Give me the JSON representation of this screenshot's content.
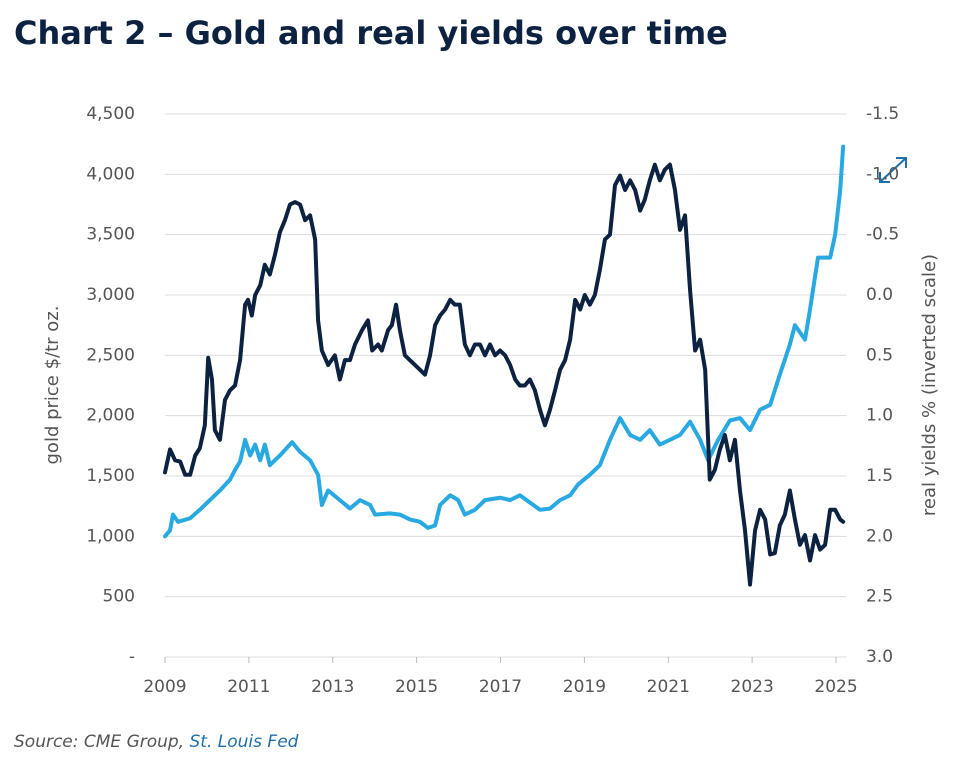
{
  "chart_data": {
    "type": "line",
    "title": "Chart 2 – Gold and real yields over time",
    "y_label": "gold price $/tr oz.",
    "y2_label": "real yields % (inverted scale)",
    "source": {
      "text": "Source: CME Group,",
      "link": "St. Louis Fed"
    },
    "xlim": [
      2009,
      2025.25
    ],
    "xticks": [
      2009,
      2011,
      2013,
      2015,
      2017,
      2019,
      2021,
      2023,
      2025
    ],
    "ylim": [
      0,
      4500
    ],
    "yticks": [
      {
        "value": 0,
        "label": "-"
      },
      500,
      {
        "value": 1000,
        "label": "1,000"
      },
      {
        "value": 1500,
        "label": "1,500"
      },
      {
        "value": 2000,
        "label": "2,000"
      },
      {
        "value": 2500,
        "label": "2,500"
      },
      {
        "value": 3000,
        "label": "3,000"
      },
      {
        "value": 3500,
        "label": "3,500"
      },
      {
        "value": 4000,
        "label": "4,000"
      },
      {
        "value": 4500,
        "label": "4,500"
      }
    ],
    "y2lim": [
      -1.5,
      3.0
    ],
    "y2_inverted": true,
    "y2ticks": [
      -1.5,
      {
        "value": -1,
        "label": "-1.0"
      },
      -0.5,
      {
        "value": 0,
        "label": "0.0"
      },
      0.5,
      {
        "value": 1,
        "label": "1.0"
      },
      1.5,
      {
        "value": 2,
        "label": "2.0"
      },
      2.5,
      {
        "value": 3,
        "label": "3.0"
      }
    ],
    "grid": true,
    "series": [
      {
        "color": "#29a9e1",
        "axis": "y",
        "x": [
          2009.0,
          2009.12,
          2009.19,
          2009.31,
          2009.6,
          2009.83,
          2010.07,
          2010.31,
          2010.55,
          2010.67,
          2010.79,
          2010.91,
          2011.03,
          2011.15,
          2011.27,
          2011.38,
          2011.5,
          2011.74,
          2012.03,
          2012.22,
          2012.46,
          2012.65,
          2012.74,
          2012.89,
          2013.17,
          2013.41,
          2013.65,
          2013.89,
          2014.01,
          2014.36,
          2014.6,
          2014.84,
          2015.08,
          2015.27,
          2015.44,
          2015.56,
          2015.8,
          2015.99,
          2016.15,
          2016.39,
          2016.63,
          2016.99,
          2017.23,
          2017.46,
          2017.7,
          2017.94,
          2018.18,
          2018.42,
          2018.66,
          2018.85,
          2019.13,
          2019.37,
          2019.61,
          2019.85,
          2020.09,
          2020.33,
          2020.56,
          2020.8,
          2021.04,
          2021.28,
          2021.52,
          2021.76,
          2021.95,
          2022.19,
          2022.47,
          2022.71,
          2022.95,
          2023.19,
          2023.43,
          2023.66,
          2023.9,
          2024.02,
          2024.26,
          2024.38,
          2024.57,
          2024.86,
          2024.98,
          2025.1,
          2025.17
        ],
        "values": [
          1000,
          1050,
          1180,
          1120,
          1150,
          1220,
          1300,
          1380,
          1470,
          1550,
          1620,
          1800,
          1670,
          1760,
          1630,
          1760,
          1590,
          1670,
          1780,
          1700,
          1630,
          1510,
          1260,
          1380,
          1300,
          1230,
          1300,
          1260,
          1180,
          1190,
          1180,
          1140,
          1120,
          1070,
          1090,
          1260,
          1340,
          1300,
          1180,
          1220,
          1300,
          1320,
          1300,
          1340,
          1280,
          1220,
          1230,
          1300,
          1340,
          1430,
          1510,
          1590,
          1800,
          1980,
          1840,
          1800,
          1880,
          1760,
          1800,
          1840,
          1950,
          1800,
          1630,
          1800,
          1960,
          1980,
          1880,
          2050,
          2090,
          2340,
          2590,
          2750,
          2630,
          2880,
          3310,
          3310,
          3500,
          3870,
          4230
        ]
      },
      {
        "color": "#0d2240",
        "axis": "y2",
        "x": [
          2009.0,
          2009.12,
          2009.24,
          2009.36,
          2009.48,
          2009.6,
          2009.72,
          2009.83,
          2009.95,
          2010.03,
          2010.12,
          2010.19,
          2010.31,
          2010.43,
          2010.55,
          2010.67,
          2010.79,
          2010.91,
          2010.98,
          2011.07,
          2011.15,
          2011.27,
          2011.38,
          2011.5,
          2011.62,
          2011.74,
          2011.86,
          2011.98,
          2012.1,
          2012.22,
          2012.34,
          2012.46,
          2012.58,
          2012.65,
          2012.74,
          2012.89,
          2013.05,
          2013.17,
          2013.29,
          2013.41,
          2013.53,
          2013.7,
          2013.84,
          2013.94,
          2014.08,
          2014.17,
          2014.32,
          2014.41,
          2014.51,
          2014.6,
          2014.72,
          2014.84,
          2014.96,
          2015.08,
          2015.2,
          2015.32,
          2015.44,
          2015.56,
          2015.68,
          2015.8,
          2015.91,
          2016.03,
          2016.15,
          2016.27,
          2016.39,
          2016.51,
          2016.63,
          2016.75,
          2016.87,
          2016.99,
          2017.11,
          2017.23,
          2017.35,
          2017.46,
          2017.58,
          2017.7,
          2017.82,
          2017.94,
          2018.06,
          2018.18,
          2018.3,
          2018.42,
          2018.54,
          2018.66,
          2018.78,
          2018.9,
          2019.01,
          2019.13,
          2019.25,
          2019.37,
          2019.49,
          2019.61,
          2019.73,
          2019.85,
          2019.97,
          2020.09,
          2020.21,
          2020.33,
          2020.44,
          2020.56,
          2020.68,
          2020.8,
          2020.92,
          2021.04,
          2021.16,
          2021.28,
          2021.4,
          2021.52,
          2021.64,
          2021.76,
          2021.88,
          2021.99,
          2022.11,
          2022.23,
          2022.35,
          2022.47,
          2022.59,
          2022.71,
          2022.83,
          2022.95,
          2023.07,
          2023.19,
          2023.31,
          2023.43,
          2023.54,
          2023.66,
          2023.78,
          2023.9,
          2024.02,
          2024.14,
          2024.26,
          2024.38,
          2024.5,
          2024.62,
          2024.74,
          2024.86,
          2024.98,
          2025.1,
          2025.17
        ],
        "values": [
          1.47,
          1.28,
          1.37,
          1.38,
          1.49,
          1.49,
          1.33,
          1.27,
          1.08,
          0.52,
          0.7,
          1.12,
          1.2,
          0.87,
          0.79,
          0.75,
          0.54,
          0.08,
          0.04,
          0.17,
          0.0,
          -0.08,
          -0.25,
          -0.17,
          -0.33,
          -0.52,
          -0.62,
          -0.75,
          -0.77,
          -0.75,
          -0.62,
          -0.66,
          -0.46,
          0.21,
          0.46,
          0.58,
          0.5,
          0.7,
          0.54,
          0.54,
          0.41,
          0.29,
          0.21,
          0.46,
          0.41,
          0.46,
          0.29,
          0.25,
          0.08,
          0.29,
          0.5,
          0.54,
          0.58,
          0.62,
          0.66,
          0.5,
          0.25,
          0.17,
          0.12,
          0.04,
          0.08,
          0.08,
          0.41,
          0.5,
          0.41,
          0.41,
          0.5,
          0.41,
          0.5,
          0.46,
          0.5,
          0.58,
          0.7,
          0.75,
          0.75,
          0.7,
          0.79,
          0.95,
          1.08,
          0.95,
          0.79,
          0.62,
          0.54,
          0.37,
          0.04,
          0.12,
          0.0,
          0.08,
          0.0,
          -0.21,
          -0.46,
          -0.5,
          -0.91,
          -0.99,
          -0.87,
          -0.95,
          -0.87,
          -0.7,
          -0.79,
          -0.95,
          -1.08,
          -0.95,
          -1.04,
          -1.08,
          -0.87,
          -0.54,
          -0.66,
          -0.04,
          0.46,
          0.37,
          0.62,
          1.53,
          1.45,
          1.28,
          1.16,
          1.37,
          1.2,
          1.62,
          1.95,
          2.4,
          1.95,
          1.78,
          1.86,
          2.15,
          2.14,
          1.91,
          1.82,
          1.62,
          1.86,
          2.07,
          1.99,
          2.2,
          1.99,
          2.11,
          2.07,
          1.78,
          1.78,
          1.86,
          1.88
        ]
      }
    ]
  }
}
